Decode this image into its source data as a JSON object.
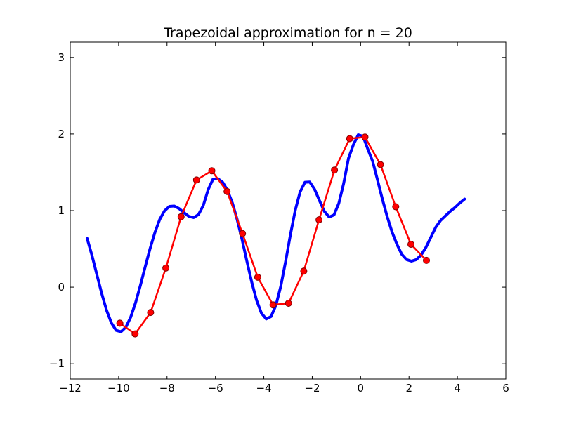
{
  "chart_data": {
    "type": "line",
    "title": "Trapezoidal approximation for n = 20",
    "xlabel": "",
    "ylabel": "",
    "xlim": [
      -12,
      6
    ],
    "ylim": [
      -1.2,
      3.2
    ],
    "xticks": [
      -12,
      -10,
      -8,
      -6,
      -4,
      -2,
      0,
      2,
      4,
      6
    ],
    "xtick_labels": [
      "−12",
      "−10",
      "−8",
      "−6",
      "−4",
      "−2",
      "0",
      "2",
      "4",
      "6"
    ],
    "yticks": [
      -1,
      0,
      1,
      2,
      3
    ],
    "ytick_labels": [
      "−1",
      "0",
      "1",
      "2",
      "3"
    ],
    "grid": false,
    "colors": {
      "function": "#0000ff",
      "trapezoid": "#ff0000",
      "marker": "#ff0000",
      "marker_edge": "#800000"
    },
    "function_curve": {
      "x": [
        -11.3,
        -11.1,
        -10.9,
        -10.7,
        -10.5,
        -10.3,
        -10.1,
        -9.9,
        -9.7,
        -9.5,
        -9.3,
        -9.1,
        -8.9,
        -8.7,
        -8.5,
        -8.3,
        -8.1,
        -7.9,
        -7.7,
        -7.5,
        -7.3,
        -7.1,
        -6.9,
        -6.7,
        -6.5,
        -6.3,
        -6.1,
        -5.9,
        -5.7,
        -5.5,
        -5.3,
        -5.1,
        -4.9,
        -4.7,
        -4.5,
        -4.3,
        -4.1,
        -3.9,
        -3.7,
        -3.5,
        -3.3,
        -3.1,
        -2.9,
        -2.7,
        -2.5,
        -2.3,
        -2.1,
        -1.9,
        -1.7,
        -1.5,
        -1.3,
        -1.1,
        -0.9,
        -0.7,
        -0.5,
        -0.3,
        -0.1,
        0.1,
        0.3,
        0.5,
        0.7,
        0.9,
        1.1,
        1.3,
        1.5,
        1.7,
        1.9,
        2.1,
        2.3,
        2.5,
        2.7,
        2.9,
        3.1,
        3.3,
        3.5,
        3.7,
        3.9,
        4.1,
        4.3
      ],
      "y": [
        0.635,
        0.412,
        0.164,
        -0.083,
        -0.302,
        -0.468,
        -0.565,
        -0.582,
        -0.522,
        -0.391,
        -0.203,
        0.025,
        0.269,
        0.506,
        0.717,
        0.885,
        0.998,
        1.055,
        1.06,
        1.026,
        0.973,
        0.925,
        0.908,
        0.949,
        1.067,
        1.273,
        1.411,
        1.417,
        1.369,
        1.264,
        1.099,
        0.88,
        0.621,
        0.341,
        0.067,
        -0.17,
        -0.339,
        -0.415,
        -0.382,
        -0.237,
        0.013,
        0.337,
        0.686,
        1.005,
        1.245,
        1.37,
        1.373,
        1.277,
        1.13,
        0.99,
        0.916,
        0.943,
        1.094,
        1.355,
        1.684,
        1.86,
        1.99,
        1.97,
        1.8,
        1.64,
        1.4,
        1.15,
        0.92,
        0.72,
        0.56,
        0.43,
        0.36,
        0.34,
        0.36,
        0.42,
        0.52,
        0.65,
        0.78,
        0.87,
        0.93,
        0.99,
        1.04,
        1.1,
        1.15
      ]
    },
    "trapezoid_points": {
      "x": [
        -9.95,
        -9.32,
        -8.68,
        -8.05,
        -7.42,
        -6.78,
        -6.15,
        -5.52,
        -4.88,
        -4.25,
        -3.62,
        -2.98,
        -2.35,
        -1.72,
        -1.08,
        -0.45,
        0.18,
        0.82,
        1.45,
        2.08,
        2.72
      ],
      "y": [
        -0.47,
        -0.61,
        -0.33,
        0.25,
        0.92,
        1.4,
        1.52,
        1.25,
        0.7,
        0.13,
        -0.23,
        -0.21,
        0.21,
        0.88,
        1.53,
        1.94,
        1.96,
        1.6,
        1.05,
        0.56,
        0.35
      ]
    }
  }
}
